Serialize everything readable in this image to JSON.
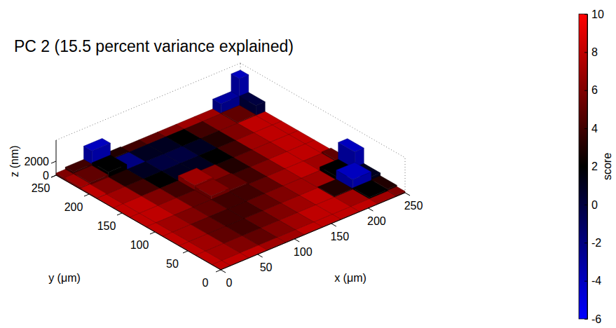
{
  "chart_data": {
    "type": "surface",
    "title": "PC 2 (15.5 percent variance explained)",
    "x_label": "x (μm)",
    "y_label": "y (μm)",
    "z_label": "z (nm)",
    "x": [
      0,
      25,
      50,
      75,
      100,
      125,
      150,
      175,
      200,
      225,
      250
    ],
    "y": [
      0,
      25,
      50,
      75,
      100,
      125,
      150,
      175,
      200,
      225,
      250
    ],
    "z": [
      [
        100,
        100,
        100,
        100,
        100,
        100,
        100,
        100,
        100,
        100,
        200
      ],
      [
        100,
        100,
        100,
        100,
        100,
        100,
        100,
        100,
        100,
        300,
        400
      ],
      [
        100,
        100,
        100,
        100,
        100,
        100,
        100,
        100,
        200,
        1500,
        800
      ],
      [
        100,
        100,
        100,
        100,
        100,
        100,
        100,
        100,
        100,
        600,
        3000
      ],
      [
        100,
        100,
        100,
        100,
        100,
        100,
        100,
        100,
        100,
        100,
        300
      ],
      [
        100,
        100,
        100,
        100,
        600,
        300,
        100,
        100,
        100,
        100,
        100
      ],
      [
        100,
        100,
        100,
        100,
        800,
        200,
        100,
        100,
        100,
        100,
        100
      ],
      [
        100,
        100,
        100,
        100,
        100,
        100,
        100,
        100,
        100,
        100,
        100
      ],
      [
        200,
        100,
        100,
        100,
        100,
        100,
        100,
        100,
        100,
        100,
        100
      ],
      [
        300,
        400,
        800,
        100,
        100,
        100,
        100,
        100,
        100,
        200,
        1500
      ],
      [
        300,
        600,
        2500,
        200,
        100,
        100,
        100,
        100,
        100,
        1500,
        4000
      ]
    ],
    "scores": [
      [
        8,
        8,
        8,
        7,
        7,
        8,
        8,
        8,
        8,
        7,
        6
      ],
      [
        8,
        7,
        6,
        5,
        6,
        7,
        8,
        8,
        7,
        2,
        3
      ],
      [
        8,
        7,
        5,
        4,
        5,
        6,
        7,
        8,
        3,
        -4,
        1
      ],
      [
        8,
        7,
        5,
        4,
        4,
        5,
        6,
        7,
        7,
        2,
        -4
      ],
      [
        8,
        7,
        6,
        5,
        4,
        4,
        5,
        7,
        8,
        7,
        5
      ],
      [
        8,
        8,
        7,
        5,
        6,
        5,
        4,
        6,
        8,
        8,
        8
      ],
      [
        8,
        8,
        6,
        4,
        7,
        6,
        3,
        5,
        7,
        8,
        8
      ],
      [
        8,
        7,
        4,
        2,
        1,
        1,
        2,
        4,
        7,
        8,
        8
      ],
      [
        8,
        6,
        3,
        1,
        0,
        0,
        1,
        3,
        6,
        8,
        8
      ],
      [
        7,
        5,
        2,
        -2,
        1,
        1,
        2,
        4,
        6,
        5,
        0
      ],
      [
        6,
        4,
        -4,
        3,
        4,
        5,
        6,
        7,
        7,
        -3,
        -4
      ]
    ],
    "xlim": [
      0,
      250
    ],
    "ylim": [
      0,
      250
    ],
    "zlim": [
      0,
      5000
    ],
    "xticks": [
      0,
      50,
      100,
      150,
      200,
      250
    ],
    "yticks": [
      0,
      50,
      100,
      150,
      200,
      250
    ],
    "zticks": [
      0,
      2000
    ],
    "colorbar": {
      "label": "score",
      "range": [
        -6,
        10
      ],
      "ticks": [
        -6,
        -4,
        -2,
        0,
        2,
        4,
        6,
        8,
        10
      ]
    }
  }
}
